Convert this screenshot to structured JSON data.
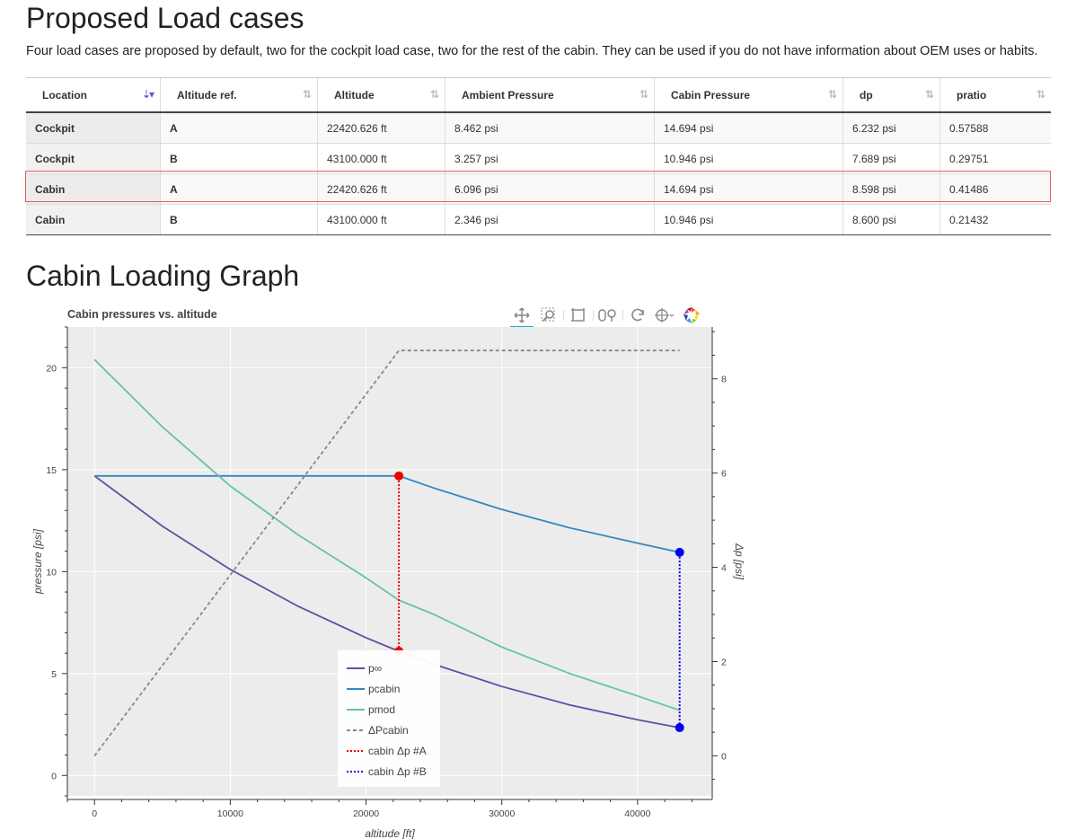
{
  "page": {
    "heading": "Proposed Load cases",
    "intro": "Four load cases are proposed by default, two for the cockpit load case, two for the rest of the cabin. They can be used if you do not have information about OEM uses or habits.",
    "graph_heading": "Cabin Loading Graph"
  },
  "table": {
    "columns": [
      "Location",
      "Altitude ref.",
      "Altitude",
      "Ambient Pressure",
      "Cabin Pressure",
      "dp",
      "pratio"
    ],
    "sorted_column": "Location",
    "rows": [
      {
        "location": "Cockpit",
        "alt_ref": "A",
        "altitude": "22420.626 ft",
        "ambient": "8.462 psi",
        "cabin": "14.694 psi",
        "dp": "6.232 psi",
        "pratio": "0.57588"
      },
      {
        "location": "Cockpit",
        "alt_ref": "B",
        "altitude": "43100.000 ft",
        "ambient": "3.257 psi",
        "cabin": "10.946 psi",
        "dp": "7.689 psi",
        "pratio": "0.29751"
      },
      {
        "location": "Cabin",
        "alt_ref": "A",
        "altitude": "22420.626 ft",
        "ambient": "6.096 psi",
        "cabin": "14.694 psi",
        "dp": "8.598 psi",
        "pratio": "0.41486"
      },
      {
        "location": "Cabin",
        "alt_ref": "B",
        "altitude": "43100.000 ft",
        "ambient": "2.346 psi",
        "cabin": "10.946 psi",
        "dp": "8.600 psi",
        "pratio": "0.21432"
      }
    ],
    "highlighted_row": 2
  },
  "toolbar": {
    "tools": [
      "pan-icon",
      "box-zoom-icon",
      "box-select-icon",
      "wheel-zoom-icon",
      "reset-icon",
      "crosshair-icon",
      "bokeh-logo-icon"
    ]
  },
  "chart_data": {
    "type": "line",
    "title": "Cabin pressures vs. altitude",
    "xlabel": "altitude [ft]",
    "ylabel": "pressure [psi]",
    "y2label": "Δp [psi]",
    "xlim": [
      -2000,
      45500
    ],
    "ylim": [
      -1,
      22
    ],
    "y2lim": [
      -0.85,
      9.1
    ],
    "xticks": [
      0,
      10000,
      20000,
      30000,
      40000
    ],
    "yticks": [
      0,
      5,
      10,
      15,
      20
    ],
    "y2ticks": [
      0,
      2,
      4,
      6,
      8
    ],
    "grid": true,
    "legend_position": "bottom-center",
    "series": [
      {
        "name": "p∞",
        "color": "#5e4fa2",
        "dash": "solid",
        "axis": "left",
        "x": [
          0,
          5000,
          10000,
          15000,
          20000,
          22420.626,
          25000,
          30000,
          35000,
          40000,
          43100
        ],
        "y": [
          14.696,
          12.23,
          10.108,
          8.297,
          6.759,
          6.096,
          5.46,
          4.366,
          3.458,
          2.73,
          2.346
        ]
      },
      {
        "name": "pcabin",
        "color": "#3288bd",
        "dash": "solid",
        "axis": "left",
        "x": [
          0,
          22420.626,
          25000,
          30000,
          35000,
          40000,
          43100
        ],
        "y": [
          14.694,
          14.694,
          14.1,
          13.05,
          12.15,
          11.4,
          10.946
        ]
      },
      {
        "name": "pmod",
        "color": "#66c2a5",
        "dash": "solid",
        "axis": "left",
        "x": [
          0,
          5000,
          10000,
          15000,
          20000,
          22420.626,
          25000,
          30000,
          35000,
          40000,
          43100
        ],
        "y": [
          20.4,
          17.1,
          14.2,
          11.8,
          9.7,
          8.6,
          7.9,
          6.3,
          5.0,
          3.9,
          3.2
        ]
      },
      {
        "name": "ΔPcabin",
        "color": "#888888",
        "dash": "dashed",
        "axis": "right",
        "x": [
          0,
          22420.626,
          43100
        ],
        "y": [
          0.0,
          8.6,
          8.6
        ]
      },
      {
        "name": "cabin Δp #A",
        "color": "#ee0000",
        "dash": "dotted",
        "axis": "left",
        "x": [
          22420.626,
          22420.626
        ],
        "y": [
          6.096,
          14.694
        ]
      },
      {
        "name": "cabin Δp #B",
        "color": "#0000ee",
        "dash": "dotted",
        "axis": "left",
        "x": [
          43100,
          43100
        ],
        "y": [
          2.346,
          10.946
        ]
      }
    ]
  }
}
